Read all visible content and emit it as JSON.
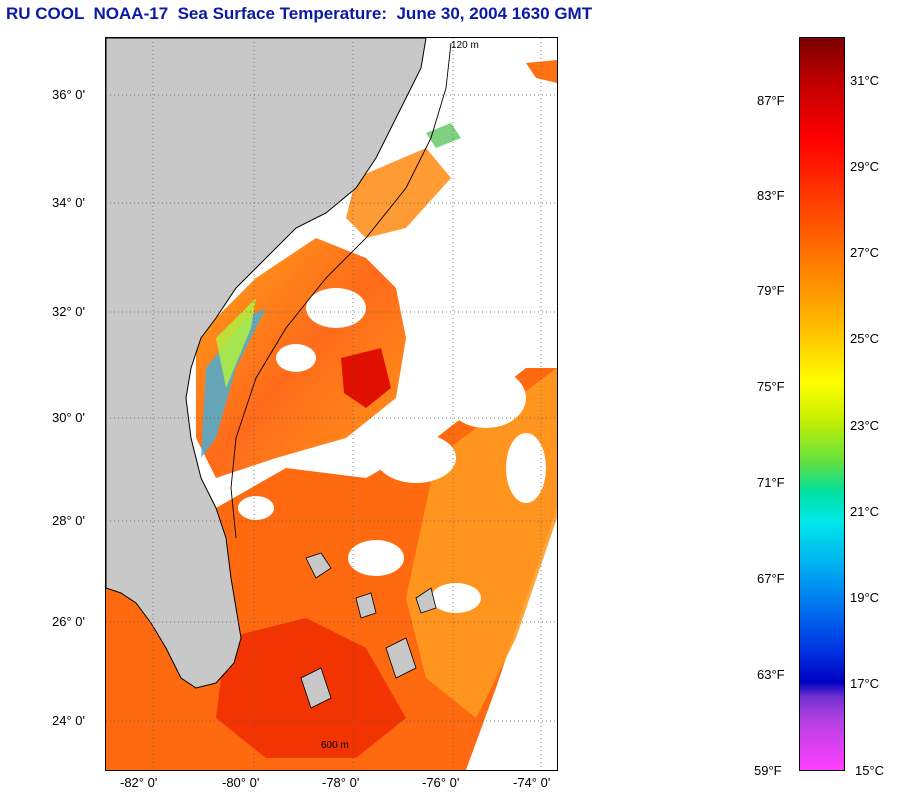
{
  "title": "RU COOL  NOAA-17  Sea Surface Temperature:  June 30, 2004 1630 GMT",
  "map": {
    "lat_labels": [
      "36° 0'",
      "34° 0'",
      "32° 0'",
      "30° 0'",
      "28° 0'",
      "26° 0'",
      "24° 0'"
    ],
    "lon_labels": [
      "-82° 0'",
      "-80° 0'",
      "-78° 0'",
      "-76° 0'",
      "-74° 0'"
    ],
    "isobath_labels": [
      "120 m",
      "600 m"
    ],
    "colors": {
      "land": "#c8c8c8",
      "cloud": "#ffffff",
      "coast": "#000000",
      "grid": "#555555"
    }
  },
  "colorbar": {
    "fahrenheit": [
      "87°F",
      "83°F",
      "79°F",
      "75°F",
      "71°F",
      "67°F",
      "63°F",
      "59°F"
    ],
    "celsius": [
      "31°C",
      "29°C",
      "27°C",
      "25°C",
      "23°C",
      "21°C",
      "19°C",
      "17°C",
      "15°C"
    ]
  }
}
